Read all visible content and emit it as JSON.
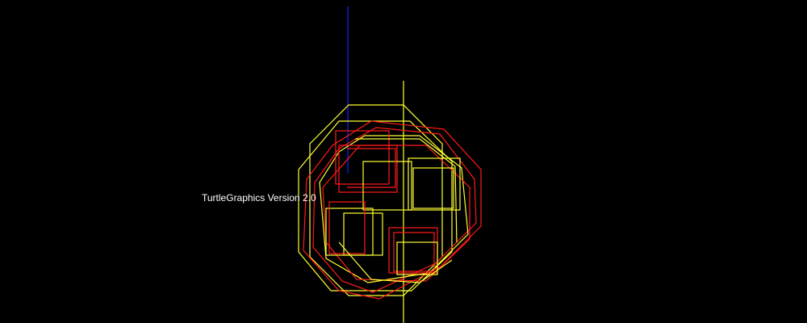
{
  "canvas": {
    "background": "#000000",
    "version_text": "TurtleGraphics Version 2.0"
  },
  "colors": {
    "yellow": "#ffff33",
    "red": "#ff1a1a",
    "blue": "#1a1aff",
    "text": "#ffffff"
  },
  "drawing": {
    "description_icon": "turtle-drawing",
    "octagon_count": 4,
    "square_count": 10
  }
}
